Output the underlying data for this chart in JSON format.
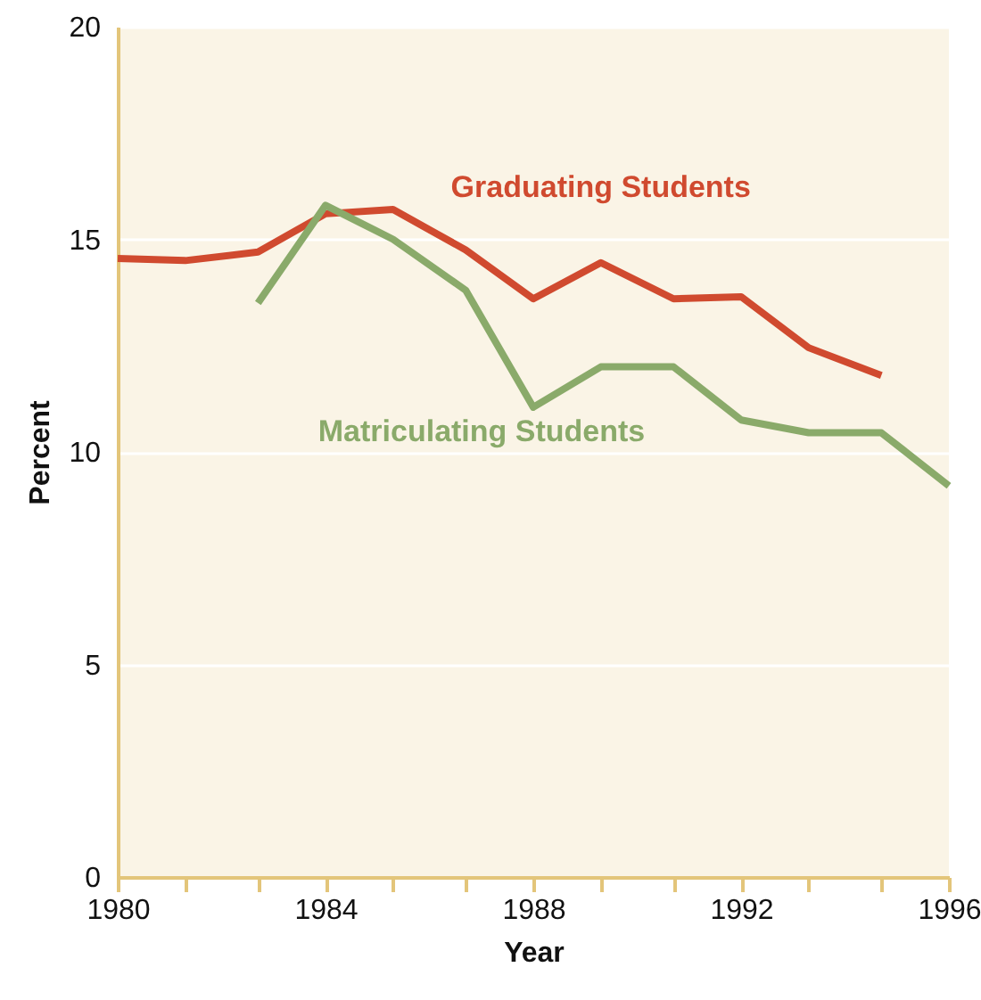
{
  "chart_data": {
    "type": "line",
    "xlabel": "Year",
    "ylabel": "Percent",
    "xlim": [
      1980,
      1996
    ],
    "xticks": [
      1980,
      {
        "value": 1981.3,
        "label": null
      },
      {
        "value": 1982.7,
        "label": null
      },
      1984,
      {
        "value": 1985.3,
        "label": null
      },
      {
        "value": 1986.7,
        "label": null
      },
      1988,
      {
        "value": 1989.3,
        "label": null
      },
      {
        "value": 1990.7,
        "label": null
      },
      1992,
      {
        "value": 1993.3,
        "label": null
      },
      {
        "value": 1994.7,
        "label": null
      },
      1996
    ],
    "ylim": [
      0,
      20
    ],
    "yticks": [
      0,
      5,
      10,
      15,
      20
    ],
    "grid": "y",
    "legend": false,
    "line_style": "solid",
    "marker": "none",
    "series": [
      {
        "name": "Graduating Students",
        "color": "#d04a2f",
        "x": [
          1980,
          1981.3,
          1982.7,
          1984,
          1985.3,
          1986.7,
          1988,
          1989.3,
          1990.7,
          1992,
          1993.3,
          1994.7
        ],
        "values": [
          14.55,
          14.5,
          14.7,
          15.6,
          15.7,
          14.75,
          13.6,
          14.45,
          13.6,
          13.65,
          12.45,
          11.8
        ]
      },
      {
        "name": "Matriculating Students",
        "color": "#8aaa6a",
        "x": [
          1982.7,
          1984,
          1985.3,
          1986.7,
          1988,
          1989.3,
          1990.7,
          1992,
          1993.3,
          1994.7,
          1996
        ],
        "values": [
          13.5,
          15.8,
          15.0,
          13.8,
          11.05,
          12.0,
          12.0,
          10.75,
          10.45,
          10.45,
          9.2
        ]
      }
    ]
  }
}
